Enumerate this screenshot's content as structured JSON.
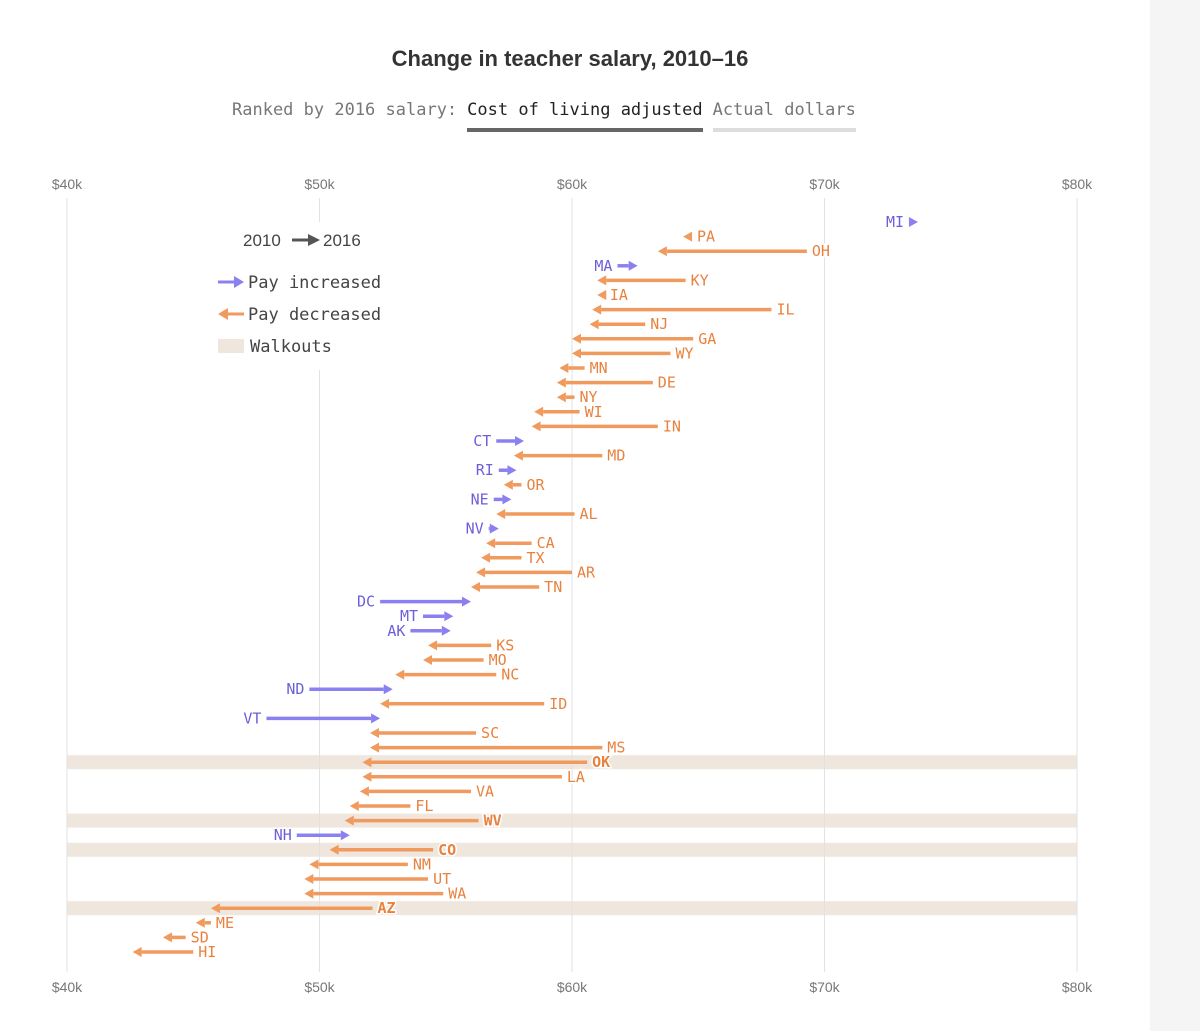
{
  "title": "Change in teacher salary, 2010–16",
  "ranking": {
    "label": "Ranked by 2016 salary:",
    "tabs": [
      {
        "label": "Cost of living adjusted",
        "active": true
      },
      {
        "label": "Actual dollars",
        "active": false
      }
    ]
  },
  "chart_data": {
    "type": "arrow",
    "title": "Change in teacher salary, 2010–16",
    "xlim": [
      40,
      80
    ],
    "x_unit": "thousand USD",
    "ticks": [
      {
        "value": 40,
        "label": "$40k"
      },
      {
        "value": 50,
        "label": "$50k"
      },
      {
        "value": 60,
        "label": "$60k"
      },
      {
        "value": 70,
        "label": "$70k"
      },
      {
        "value": 80,
        "label": "$80k"
      }
    ],
    "legend": {
      "years": {
        "from": "2010",
        "to": "2016"
      },
      "increased": "Pay increased",
      "decreased": "Pay decreased",
      "walkouts": "Walkouts"
    },
    "colors": {
      "increased": "#8b80f0",
      "increased_text": "#6c5fd9",
      "decreased": "#f09a5e",
      "decreased_text": "#e8823f",
      "walkout": "#efe6dd",
      "grid": "#e2e2e2"
    },
    "states": [
      {
        "state": "MI",
        "y2010": 73.35,
        "y2016": 73.7
      },
      {
        "state": "PA",
        "y2010": 64.75,
        "y2016": 64.4
      },
      {
        "state": "OH",
        "y2010": 69.3,
        "y2016": 63.4
      },
      {
        "state": "MA",
        "y2010": 61.8,
        "y2016": 62.6
      },
      {
        "state": "KY",
        "y2010": 64.5,
        "y2016": 61.0
      },
      {
        "state": "IA",
        "y2010": 61.3,
        "y2016": 61.0
      },
      {
        "state": "IL",
        "y2010": 67.9,
        "y2016": 60.8
      },
      {
        "state": "NJ",
        "y2010": 62.9,
        "y2016": 60.7
      },
      {
        "state": "GA",
        "y2010": 64.8,
        "y2016": 60.0
      },
      {
        "state": "WY",
        "y2010": 63.9,
        "y2016": 60.0
      },
      {
        "state": "MN",
        "y2010": 60.5,
        "y2016": 59.5
      },
      {
        "state": "DE",
        "y2010": 63.2,
        "y2016": 59.4
      },
      {
        "state": "NY",
        "y2010": 60.1,
        "y2016": 59.4
      },
      {
        "state": "WI",
        "y2010": 60.3,
        "y2016": 58.5
      },
      {
        "state": "IN",
        "y2010": 63.4,
        "y2016": 58.4
      },
      {
        "state": "CT",
        "y2010": 57.0,
        "y2016": 58.1
      },
      {
        "state": "MD",
        "y2010": 61.2,
        "y2016": 57.7
      },
      {
        "state": "RI",
        "y2010": 57.1,
        "y2016": 57.8
      },
      {
        "state": "OR",
        "y2010": 58.0,
        "y2016": 57.3
      },
      {
        "state": "NE",
        "y2010": 56.9,
        "y2016": 57.6
      },
      {
        "state": "AL",
        "y2010": 60.1,
        "y2016": 57.0
      },
      {
        "state": "NV",
        "y2010": 56.7,
        "y2016": 57.1
      },
      {
        "state": "CA",
        "y2010": 58.4,
        "y2016": 56.6
      },
      {
        "state": "TX",
        "y2010": 58.0,
        "y2016": 56.4
      },
      {
        "state": "AR",
        "y2010": 60.0,
        "y2016": 56.2
      },
      {
        "state": "TN",
        "y2010": 58.7,
        "y2016": 56.0
      },
      {
        "state": "DC",
        "y2010": 52.4,
        "y2016": 56.0
      },
      {
        "state": "MT",
        "y2010": 54.1,
        "y2016": 55.3
      },
      {
        "state": "AK",
        "y2010": 53.6,
        "y2016": 55.2
      },
      {
        "state": "KS",
        "y2010": 56.8,
        "y2016": 54.3
      },
      {
        "state": "MO",
        "y2010": 56.5,
        "y2016": 54.1
      },
      {
        "state": "NC",
        "y2010": 57.0,
        "y2016": 53.0
      },
      {
        "state": "ND",
        "y2010": 49.6,
        "y2016": 52.9
      },
      {
        "state": "ID",
        "y2010": 58.9,
        "y2016": 52.4
      },
      {
        "state": "VT",
        "y2010": 47.9,
        "y2016": 52.4
      },
      {
        "state": "SC",
        "y2010": 56.2,
        "y2016": 52.0
      },
      {
        "state": "MS",
        "y2010": 61.2,
        "y2016": 52.0
      },
      {
        "state": "OK",
        "y2010": 60.6,
        "y2016": 51.7,
        "walkout": true
      },
      {
        "state": "LA",
        "y2010": 59.6,
        "y2016": 51.7
      },
      {
        "state": "VA",
        "y2010": 56.0,
        "y2016": 51.6
      },
      {
        "state": "FL",
        "y2010": 53.6,
        "y2016": 51.2
      },
      {
        "state": "WV",
        "y2010": 56.3,
        "y2016": 51.0,
        "walkout": true
      },
      {
        "state": "NH",
        "y2010": 49.1,
        "y2016": 51.2
      },
      {
        "state": "CO",
        "y2010": 54.5,
        "y2016": 50.4,
        "walkout": true
      },
      {
        "state": "NM",
        "y2010": 53.5,
        "y2016": 49.6
      },
      {
        "state": "UT",
        "y2010": 54.3,
        "y2016": 49.4
      },
      {
        "state": "WA",
        "y2010": 54.9,
        "y2016": 49.4
      },
      {
        "state": "AZ",
        "y2010": 52.1,
        "y2016": 45.7,
        "walkout": true
      },
      {
        "state": "ME",
        "y2010": 45.7,
        "y2016": 45.1
      },
      {
        "state": "SD",
        "y2010": 44.7,
        "y2016": 43.8
      },
      {
        "state": "HI",
        "y2010": 45.0,
        "y2016": 42.6
      }
    ]
  }
}
